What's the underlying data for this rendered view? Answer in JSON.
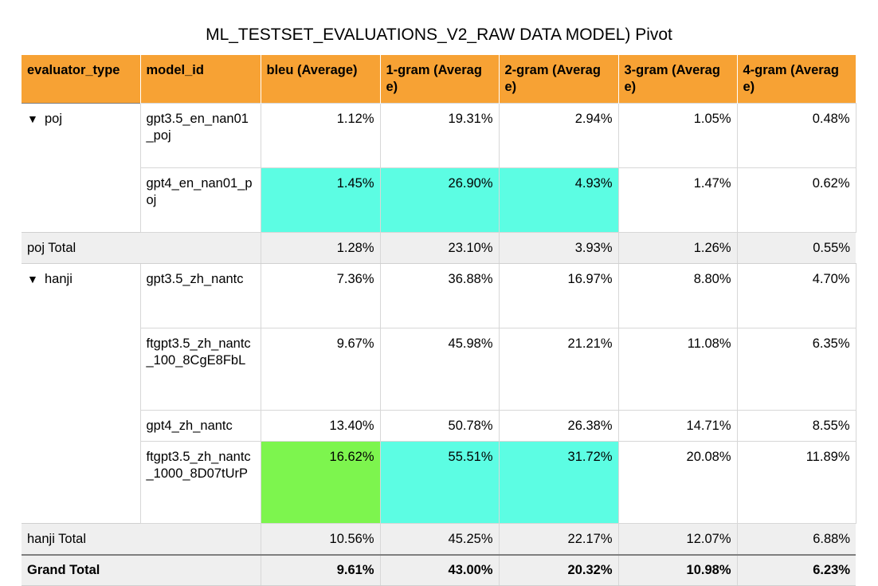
{
  "title": "ML_TESTSET_EVALUATIONS_V2_RAW DATA MODEL) Pivot",
  "colors": {
    "header": "#f7a234",
    "highlight_cyan": "#5cfde3",
    "highlight_green": "#7df54e",
    "total_bg": "#efefef"
  },
  "columns": [
    "evaluator_type",
    "model_id",
    "bleu (Average)",
    "1-gram (Average)",
    "2-gram (Average)",
    "3-gram (Average)",
    "4-gram (Average)"
  ],
  "groups": [
    {
      "name": "poj",
      "rows": [
        {
          "model_id": "gpt3.5_en_nan01_poj",
          "values": [
            "1.12%",
            "19.31%",
            "2.94%",
            "1.05%",
            "0.48%"
          ]
        },
        {
          "model_id": "gpt4_en_nan01_poj",
          "values": [
            "1.45%",
            "26.90%",
            "4.93%",
            "1.47%",
            "0.62%"
          ]
        }
      ],
      "total_label": "poj Total",
      "total": [
        "1.28%",
        "23.10%",
        "3.93%",
        "1.26%",
        "0.55%"
      ]
    },
    {
      "name": "hanji",
      "rows": [
        {
          "model_id": "gpt3.5_zh_nantc",
          "values": [
            "7.36%",
            "36.88%",
            "16.97%",
            "8.80%",
            "4.70%"
          ]
        },
        {
          "model_id": "ftgpt3.5_zh_nantc_100_8CgE8FbL",
          "values": [
            "9.67%",
            "45.98%",
            "21.21%",
            "11.08%",
            "6.35%"
          ]
        },
        {
          "model_id": "gpt4_zh_nantc",
          "values": [
            "13.40%",
            "50.78%",
            "26.38%",
            "14.71%",
            "8.55%"
          ]
        },
        {
          "model_id": "ftgpt3.5_zh_nantc_1000_8D07tUrP",
          "values": [
            "16.62%",
            "55.51%",
            "31.72%",
            "20.08%",
            "11.89%"
          ]
        }
      ],
      "total_label": "hanji Total",
      "total": [
        "10.56%",
        "45.25%",
        "22.17%",
        "12.07%",
        "6.88%"
      ]
    }
  ],
  "grand_total_label": "Grand Total",
  "grand_total": [
    "9.61%",
    "43.00%",
    "20.32%",
    "10.98%",
    "6.23%"
  ]
}
